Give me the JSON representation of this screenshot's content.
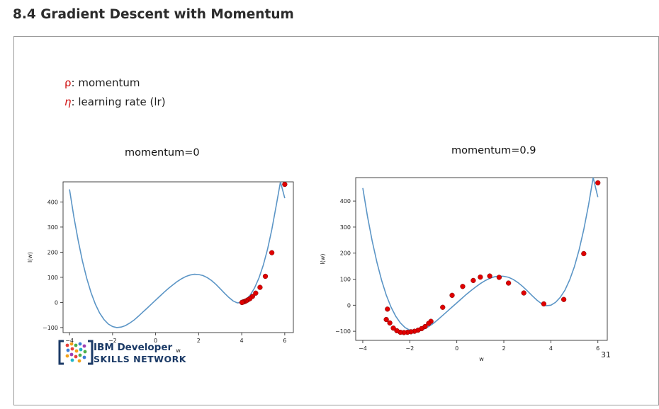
{
  "page_heading": "8.4 Gradient Descent with Momentum",
  "legend": [
    {
      "symbol": "ρ",
      "text": ": momentum"
    },
    {
      "symbol": "η",
      "text": ": learning rate (lr)"
    }
  ],
  "logo": {
    "line1": "IBM Developer",
    "line2": "SKILLS NETWORK"
  },
  "page_number": "31",
  "chart_data": [
    {
      "type": "line",
      "title": "momentum=0",
      "xlabel": "w",
      "ylabel": "l(w)",
      "xlim": [
        -4.3,
        6.4
      ],
      "ylim": [
        -120,
        480
      ],
      "xticks": [
        -4,
        -2,
        0,
        2,
        4,
        6
      ],
      "yticks": [
        -100,
        0,
        100,
        200,
        300,
        400
      ],
      "line_color": "#5b95c6",
      "curve": {
        "x": [
          -4.0,
          -3.8,
          -3.6,
          -3.4,
          -3.2,
          -3.0,
          -2.8,
          -2.6,
          -2.4,
          -2.2,
          -2.0,
          -1.8,
          -1.6,
          -1.4,
          -1.2,
          -1.0,
          -0.8,
          -0.6,
          -0.4,
          -0.2,
          0.0,
          0.2,
          0.4,
          0.6,
          0.8,
          1.0,
          1.2,
          1.4,
          1.6,
          1.8,
          2.0,
          2.2,
          2.4,
          2.6,
          2.8,
          3.0,
          3.2,
          3.4,
          3.6,
          3.8,
          4.0,
          4.2,
          4.4,
          4.6,
          4.8,
          5.0,
          5.2,
          5.4,
          5.6,
          5.8,
          6.0
        ],
        "y": [
          450,
          341,
          247,
          165,
          96,
          39,
          -7,
          -42,
          -68,
          -86,
          -96,
          -100,
          -98,
          -92,
          -82,
          -70,
          -55,
          -39,
          -23,
          -7,
          9,
          25,
          41,
          56,
          70,
          83,
          94,
          103,
          109,
          112,
          111,
          107,
          99,
          87,
          72,
          55,
          37,
          20,
          6,
          -2,
          0,
          11,
          30,
          58,
          97,
          148,
          212,
          290,
          384,
          495,
          415
        ],
        "note": "values read off the plotted curve"
      },
      "points": {
        "x": [
          6.0,
          5.4,
          5.1,
          4.85,
          4.65,
          4.5,
          4.38,
          4.28,
          4.2,
          4.14,
          4.08,
          4.04,
          4.01
        ],
        "y": [
          470,
          198,
          104,
          60,
          37,
          24,
          15,
          10,
          6,
          4,
          2,
          1,
          0
        ],
        "color": "#e00000"
      }
    },
    {
      "type": "line",
      "title": "momentum=0.9",
      "xlabel": "w",
      "ylabel": "l(w)",
      "xlim": [
        -4.3,
        6.4
      ],
      "ylim": [
        -135,
        490
      ],
      "xticks": [
        -4,
        -2,
        0,
        2,
        4,
        6
      ],
      "yticks": [
        -100,
        0,
        100,
        200,
        300,
        400
      ],
      "line_color": "#5b95c6",
      "curve": {
        "x": [
          -4.0,
          -3.8,
          -3.6,
          -3.4,
          -3.2,
          -3.0,
          -2.8,
          -2.6,
          -2.4,
          -2.2,
          -2.0,
          -1.8,
          -1.6,
          -1.4,
          -1.2,
          -1.0,
          -0.8,
          -0.6,
          -0.4,
          -0.2,
          0.0,
          0.2,
          0.4,
          0.6,
          0.8,
          1.0,
          1.2,
          1.4,
          1.6,
          1.8,
          2.0,
          2.2,
          2.4,
          2.6,
          2.8,
          3.0,
          3.2,
          3.4,
          3.6,
          3.8,
          4.0,
          4.2,
          4.4,
          4.6,
          4.8,
          5.0,
          5.2,
          5.4,
          5.6,
          5.8,
          6.0
        ],
        "y": [
          450,
          341,
          247,
          165,
          96,
          39,
          -7,
          -42,
          -68,
          -86,
          -96,
          -100,
          -98,
          -92,
          -82,
          -70,
          -55,
          -39,
          -23,
          -7,
          9,
          25,
          41,
          56,
          70,
          83,
          94,
          103,
          109,
          112,
          111,
          107,
          99,
          87,
          72,
          55,
          37,
          20,
          6,
          -2,
          0,
          11,
          30,
          58,
          97,
          148,
          212,
          290,
          384,
          495,
          415
        ],
        "note": "values read off the plotted curve"
      },
      "points": {
        "x": [
          6.0,
          5.4,
          4.55,
          3.7,
          2.85,
          2.2,
          1.8,
          1.4,
          1.0,
          0.7,
          0.25,
          -0.2,
          -0.6,
          -1.1,
          -1.2,
          -1.35,
          -1.5,
          -1.65,
          -1.8,
          -1.95,
          -2.1,
          -2.25,
          -2.4,
          -2.55,
          -2.7,
          -2.85,
          -3.0,
          -2.95
        ],
        "y": [
          470,
          198,
          22,
          5,
          47,
          85,
          107,
          112,
          108,
          95,
          72,
          38,
          -8,
          -62,
          -70,
          -82,
          -90,
          -96,
          -100,
          -102,
          -104,
          -105,
          -104,
          -98,
          -88,
          -68,
          -55,
          -15
        ],
        "color": "#e00000"
      }
    }
  ]
}
